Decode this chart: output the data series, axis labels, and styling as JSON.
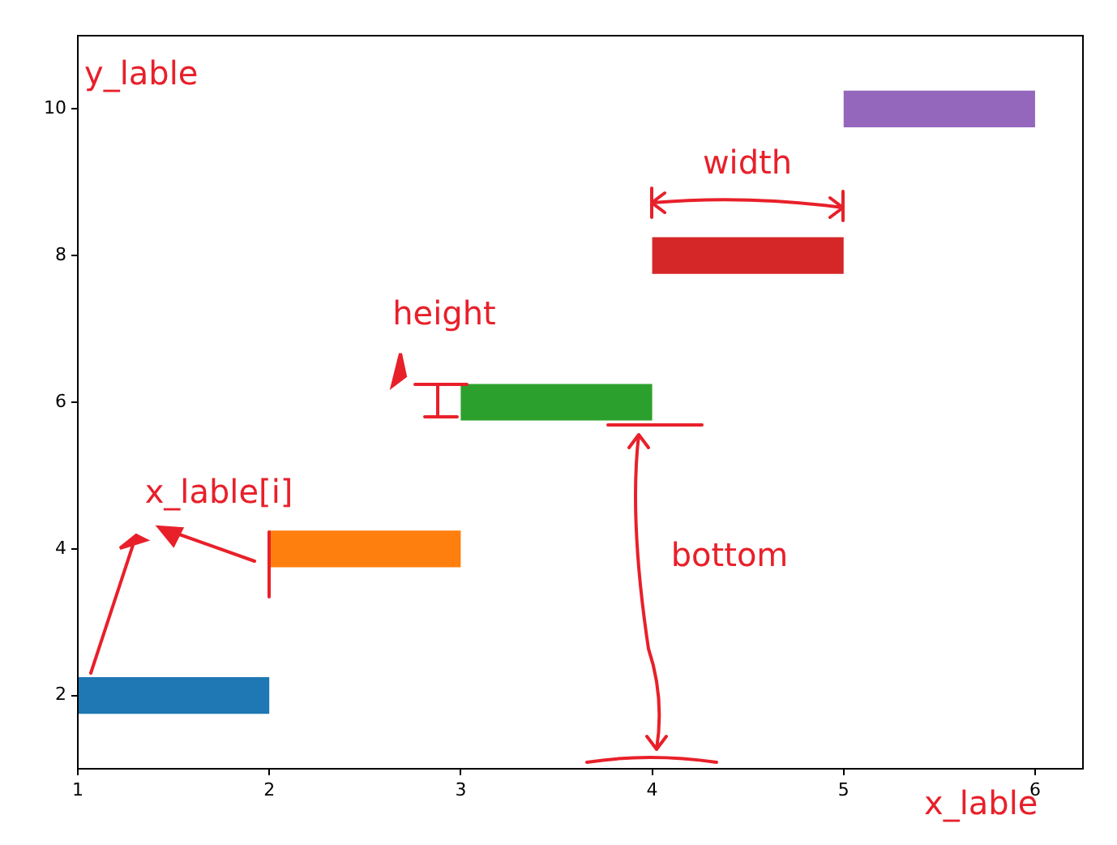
{
  "chart_data": {
    "type": "bar",
    "orientation": "horizontal",
    "categories": [
      "10",
      "8",
      "6",
      "4",
      "2"
    ],
    "base": [
      5,
      4,
      3,
      2,
      1
    ],
    "values": [
      1,
      1,
      1,
      1,
      1
    ],
    "colors": [
      "#9467bd",
      "#d62728",
      "#2ca02c",
      "#ff7f0e",
      "#1f77b4"
    ],
    "xlim": [
      1,
      6.25
    ],
    "xticks": [
      1,
      2,
      3,
      4,
      5,
      6
    ],
    "grid": false,
    "legend": false,
    "annotations": [
      "y_lable",
      "width",
      "height",
      "x_lable[i]",
      "bottom",
      "x_lable"
    ]
  }
}
